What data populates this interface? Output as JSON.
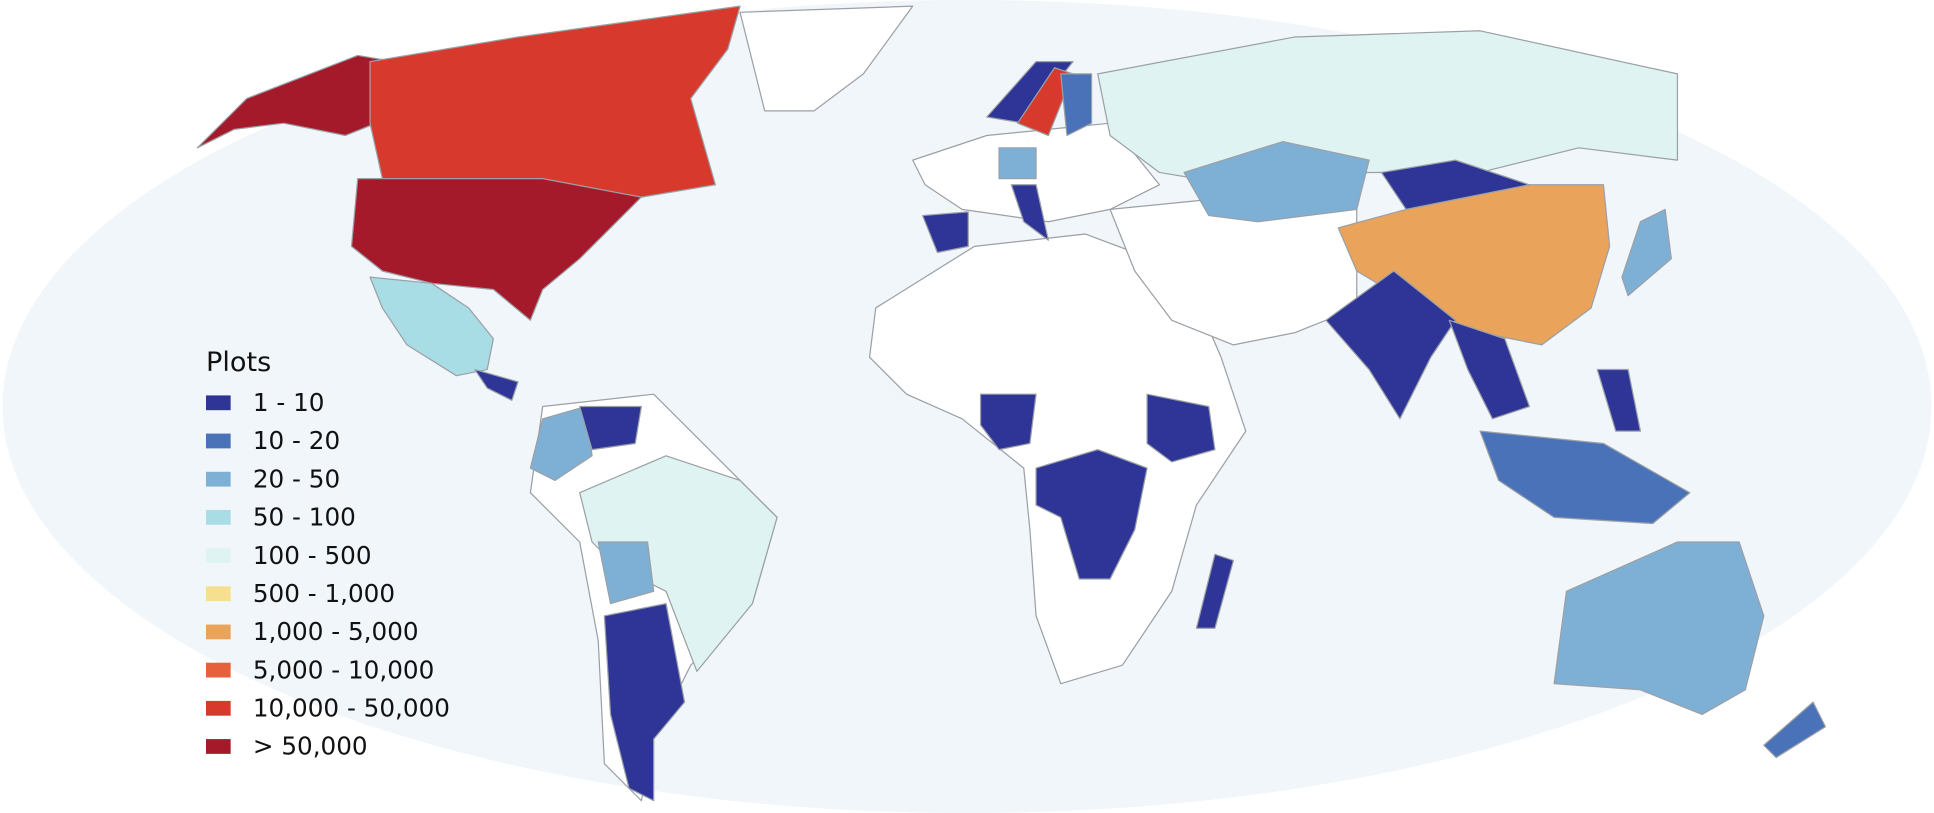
{
  "legend": {
    "title": "Plots",
    "items": [
      {
        "label": "1 - 10",
        "color": "#2f3597"
      },
      {
        "label": "10 - 20",
        "color": "#4a72b8"
      },
      {
        "label": "20 - 50",
        "color": "#7eb0d5"
      },
      {
        "label": "50 - 100",
        "color": "#a8dde6"
      },
      {
        "label": "100 - 500",
        "color": "#e0f3f3"
      },
      {
        "label": "500 - 1,000",
        "color": "#f6df8f"
      },
      {
        "label": "1,000 - 5,000",
        "color": "#eaa35a"
      },
      {
        "label": "5,000 - 10,000",
        "color": "#e6603c"
      },
      {
        "label": "10,000 - 50,000",
        "color": "#d73a2c"
      },
      {
        "label": "> 50,000",
        "color": "#a51a2a"
      }
    ]
  }
}
